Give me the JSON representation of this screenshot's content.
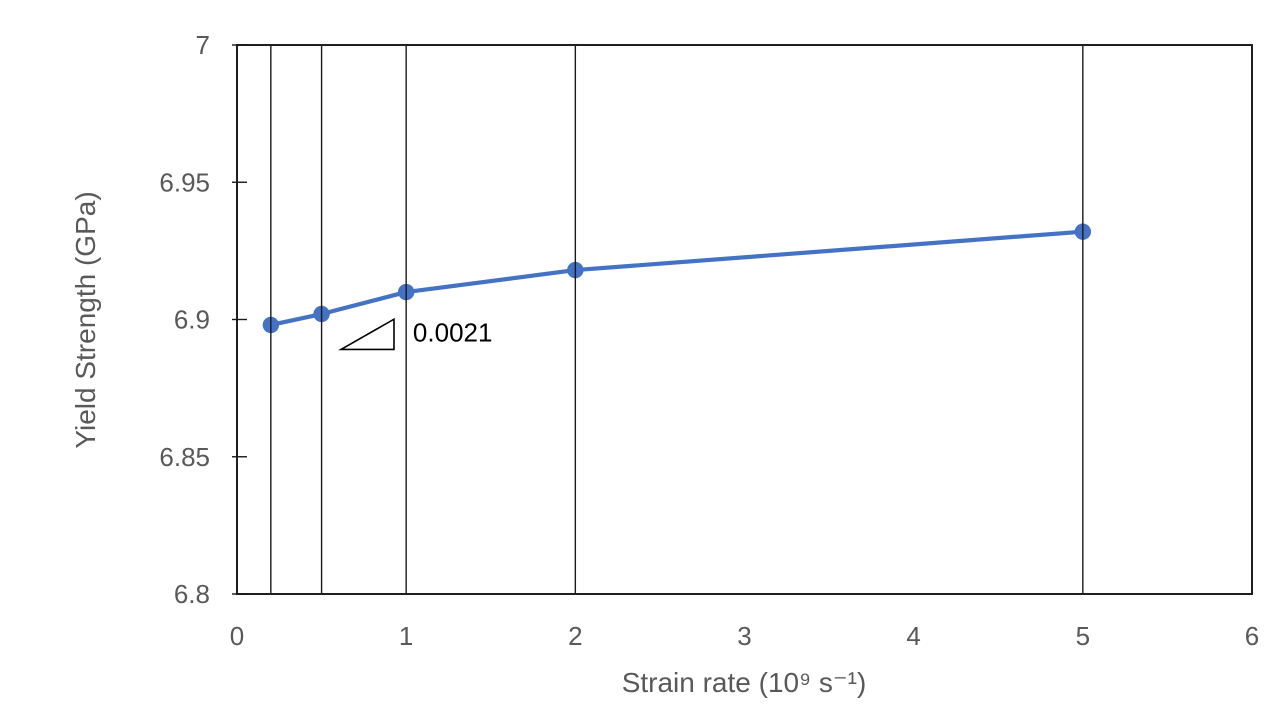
{
  "chart_data": {
    "type": "line",
    "title": "",
    "xlabel": "Strain rate (10⁹ s⁻¹)",
    "ylabel": "Yield Strength (GPa)",
    "x": [
      0.2,
      0.5,
      1,
      2,
      5
    ],
    "y": [
      6.898,
      6.902,
      6.91,
      6.918,
      6.932
    ],
    "xlim": [
      0,
      6
    ],
    "ylim": [
      6.8,
      7
    ],
    "xticks": [
      0,
      1,
      2,
      3,
      4,
      5,
      6
    ],
    "xtick_labels": [
      "0",
      "1",
      "2",
      "3",
      "4",
      "5",
      "6"
    ],
    "yticks": [
      6.8,
      6.85,
      6.9,
      6.95,
      7
    ],
    "ytick_labels": [
      "6.8",
      "6.85",
      "6.9",
      "6.95",
      "7"
    ],
    "grid": "vertical-black-lines-at-data-x",
    "legend": "none",
    "line_color": "#4472C4",
    "marker": "circle",
    "axis_text_color": "#595959",
    "annotation": {
      "text": "0.0021",
      "text_x": 1.04,
      "text_y": 6.892,
      "triangle": [
        [
          0.615,
          6.8891
        ],
        [
          0.928,
          6.9001
        ],
        [
          0.928,
          6.8891
        ]
      ]
    }
  }
}
